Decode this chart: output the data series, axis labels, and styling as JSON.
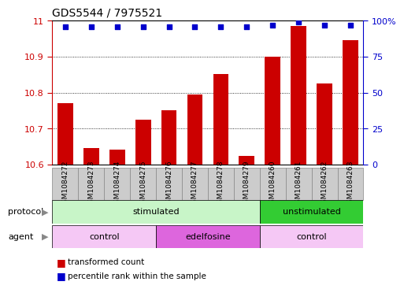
{
  "title": "GDS5544 / 7975521",
  "samples": [
    "GSM1084272",
    "GSM1084273",
    "GSM1084274",
    "GSM1084275",
    "GSM1084276",
    "GSM1084277",
    "GSM1084278",
    "GSM1084279",
    "GSM1084260",
    "GSM1084261",
    "GSM1084262",
    "GSM1084263"
  ],
  "bar_values": [
    10.77,
    10.645,
    10.642,
    10.725,
    10.752,
    10.795,
    10.852,
    10.625,
    10.9,
    10.985,
    10.825,
    10.945
  ],
  "percentile_values": [
    96,
    96,
    96,
    96,
    96,
    96,
    96,
    96,
    97,
    99,
    97,
    97
  ],
  "bar_color": "#cc0000",
  "percentile_color": "#0000cc",
  "ylim_left": [
    10.6,
    11.0
  ],
  "ylim_right": [
    0,
    100
  ],
  "yticks_left": [
    10.6,
    10.7,
    10.8,
    10.9,
    11.0
  ],
  "yticks_right": [
    0,
    25,
    50,
    75,
    100
  ],
  "ytick_labels_left": [
    "10.6",
    "10.7",
    "10.8",
    "10.9",
    "11"
  ],
  "ytick_labels_right": [
    "0",
    "25",
    "50",
    "75",
    "100%"
  ],
  "protocol_groups": [
    {
      "label": "stimulated",
      "start": 0,
      "end": 7,
      "color": "#c8f5c8"
    },
    {
      "label": "unstimulated",
      "start": 8,
      "end": 11,
      "color": "#33cc33"
    }
  ],
  "agent_groups": [
    {
      "label": "control",
      "start": 0,
      "end": 3,
      "color": "#f5c8f5"
    },
    {
      "label": "edelfosine",
      "start": 4,
      "end": 7,
      "color": "#dd66dd"
    },
    {
      "label": "control",
      "start": 8,
      "end": 11,
      "color": "#f5c8f5"
    }
  ],
  "legend_bar_label": "transformed count",
  "legend_percentile_label": "percentile rank within the sample",
  "background_color": "#ffffff",
  "bar_color_left_spine": "#cc0000",
  "bar_color_right_spine": "#0000cc",
  "sample_box_color": "#cccccc",
  "sample_box_edge": "#888888",
  "bar_width": 0.6,
  "arrow_color": "#888888"
}
